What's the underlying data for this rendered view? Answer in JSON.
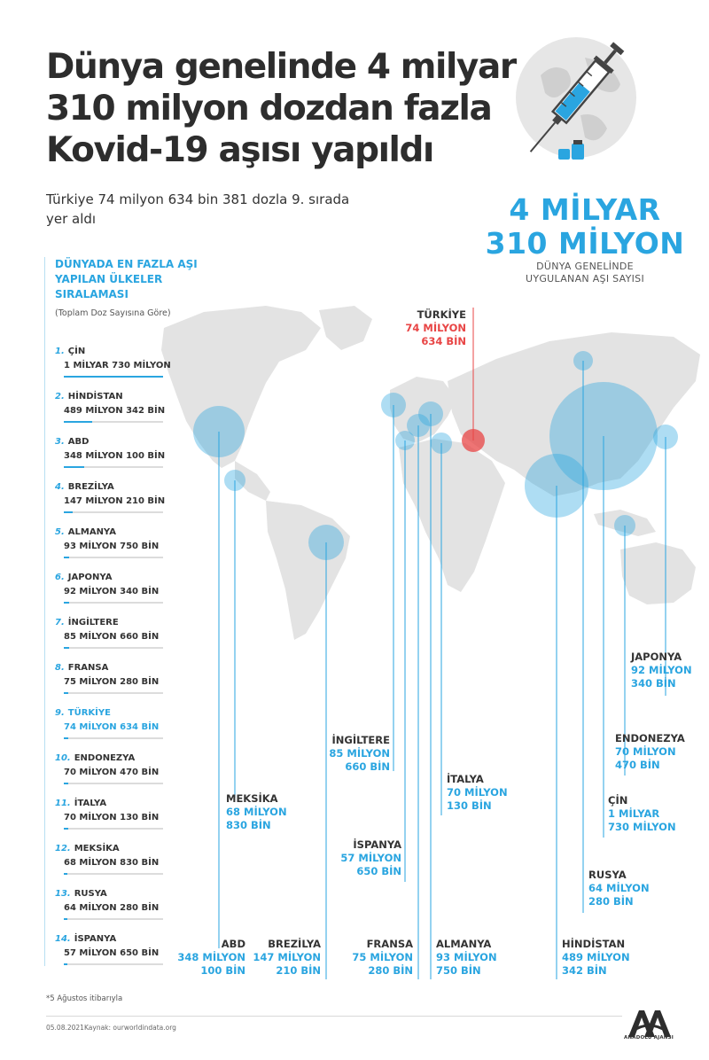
{
  "header": {
    "title": "Dünya genelinde 4 milyar 310 milyon dozdan fazla Kovid-19 aşısı yapıldı",
    "subtitle": "Türkiye 74 milyon 634 bin 381 dozla 9. sırada yer aldı"
  },
  "total": {
    "line1": "4 MİLYAR",
    "line2": "310 MİLYON",
    "caption_line1": "DÜNYA GENELİNDE",
    "caption_line2": "UYGULANAN AŞI SAYISI"
  },
  "ranking": {
    "heading": "DÜNYADA EN FAZLA AŞI YAPILAN ÜLKELER SIRALAMASI",
    "note": "(Toplam Doz Sayısına Göre)"
  },
  "colors": {
    "accent": "#2aa5e0",
    "highlight": "#e84545",
    "map": "#e3e3e3"
  },
  "chart_data": {
    "type": "bubble-map",
    "unit": "doz",
    "countries": [
      {
        "rank": "1.",
        "name": "ÇİN",
        "label": "1 MİLYAR 730 MİLYON",
        "value_millions": 1730
      },
      {
        "rank": "2.",
        "name": "HİNDİSTAN",
        "label": "489 MİLYON 342 BİN",
        "value_millions": 489.342
      },
      {
        "rank": "3.",
        "name": "ABD",
        "label": "348 MİLYON 100 BİN",
        "value_millions": 348.1
      },
      {
        "rank": "4.",
        "name": "BREZİLYA",
        "label": "147 MİLYON 210 BİN",
        "value_millions": 147.21
      },
      {
        "rank": "5.",
        "name": "ALMANYA",
        "label": "93 MİLYON 750 BİN",
        "value_millions": 93.75
      },
      {
        "rank": "6.",
        "name": "JAPONYA",
        "label": "92 MİLYON 340 BİN",
        "value_millions": 92.34
      },
      {
        "rank": "7.",
        "name": "İNGİLTERE",
        "label": "85 MİLYON 660 BİN",
        "value_millions": 85.66
      },
      {
        "rank": "8.",
        "name": "FRANSA",
        "label": "75 MİLYON 280 BİN",
        "value_millions": 75.28
      },
      {
        "rank": "9.",
        "name": "TÜRKİYE",
        "label": "74 MİLYON 634 BİN",
        "value_millions": 74.634
      },
      {
        "rank": "10.",
        "name": "ENDONEZYA",
        "label": "70 MİLYON 470 BİN",
        "value_millions": 70.47
      },
      {
        "rank": "11.",
        "name": "İTALYA",
        "label": "70 MİLYON 130 BİN",
        "value_millions": 70.13
      },
      {
        "rank": "12.",
        "name": "MEKSİKA",
        "label": "68 MİLYON 830 BİN",
        "value_millions": 68.83
      },
      {
        "rank": "13.",
        "name": "RUSYA",
        "label": "64 MİLYON 280 BİN",
        "value_millions": 64.28
      },
      {
        "rank": "14.",
        "name": "İSPANYA",
        "label": "57 MİLYON 650 BİN",
        "value_millions": 57.65
      }
    ],
    "map_labels": {
      "turkiye": {
        "name": "TÜRKİYE",
        "line1": "74 MİLYON",
        "line2": "634 BİN"
      },
      "japonya": {
        "name": "JAPONYA",
        "line1": "92 MİLYON",
        "line2": "340 BİN"
      },
      "endonezya": {
        "name": "ENDONEZYA",
        "line1": "70 MİLYON",
        "line2": "470 BİN"
      },
      "cin": {
        "name": "ÇİN",
        "line1": "1 MİLYAR",
        "line2": "730 MİLYON"
      },
      "rusya": {
        "name": "RUSYA",
        "line1": "64 MİLYON",
        "line2": "280 BİN"
      },
      "hindistan": {
        "name": "HİNDİSTAN",
        "line1": "489 MİLYON",
        "line2": "342 BİN"
      },
      "ingiltere": {
        "name": "İNGİLTERE",
        "line1": "85 MİLYON",
        "line2": "660 BİN"
      },
      "italya": {
        "name": "İTALYA",
        "line1": "70 MİLYON",
        "line2": "130 BİN"
      },
      "meksika": {
        "name": "MEKSİKA",
        "line1": "68 MİLYON",
        "line2": "830 BİN"
      },
      "ispanya": {
        "name": "İSPANYA",
        "line1": "57 MİLYON",
        "line2": "650 BİN"
      },
      "abd": {
        "name": "ABD",
        "line1": "348 MİLYON",
        "line2": "100 BİN"
      },
      "brezilya": {
        "name": "BREZİLYA",
        "line1": "147 MİLYON",
        "line2": "210 BİN"
      },
      "fransa": {
        "name": "FRANSA",
        "line1": "75 MİLYON",
        "line2": "280 BİN"
      },
      "almanya": {
        "name": "ALMANYA",
        "line1": "93 MİLYON",
        "line2": "750 BİN"
      }
    }
  },
  "footer": {
    "footnote": "*5 Ağustos itibarıyla",
    "date": "05.08.2021",
    "source": "Kaynak: ourworldindata.org",
    "agency": "ANADOLU AJANSI"
  }
}
